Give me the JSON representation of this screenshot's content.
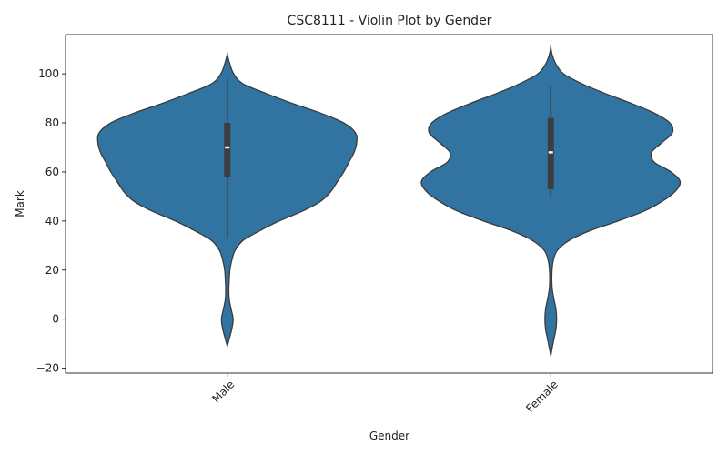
{
  "chart_data": {
    "type": "violin",
    "title": "CSC8111 - Violin Plot by Gender",
    "xlabel": "Gender",
    "ylabel": "Mark",
    "ylim": [
      -22,
      116
    ],
    "yticks": [
      -20,
      0,
      20,
      40,
      60,
      80,
      100
    ],
    "categories": [
      "Male",
      "Female"
    ],
    "x_tick_rotation": 45,
    "grid": false,
    "color": "#3274a1",
    "edge_color": "#3a3a3a",
    "box_color": "#3d3d3d",
    "median_color": "#ffffff",
    "violins": [
      {
        "category": "Male",
        "q1": 58,
        "median": 70,
        "q3": 80,
        "whisker_low": 33,
        "whisker_high": 98,
        "density": [
          [
            -11,
            0.0
          ],
          [
            -8,
            0.015
          ],
          [
            -4,
            0.035
          ],
          [
            0,
            0.045
          ],
          [
            4,
            0.03
          ],
          [
            8,
            0.015
          ],
          [
            12,
            0.012
          ],
          [
            16,
            0.015
          ],
          [
            20,
            0.02
          ],
          [
            24,
            0.035
          ],
          [
            28,
            0.06
          ],
          [
            32,
            0.12
          ],
          [
            36,
            0.25
          ],
          [
            40,
            0.4
          ],
          [
            44,
            0.58
          ],
          [
            48,
            0.72
          ],
          [
            52,
            0.8
          ],
          [
            56,
            0.85
          ],
          [
            60,
            0.9
          ],
          [
            64,
            0.94
          ],
          [
            68,
            0.98
          ],
          [
            72,
            1.0
          ],
          [
            76,
            0.99
          ],
          [
            80,
            0.9
          ],
          [
            84,
            0.72
          ],
          [
            88,
            0.5
          ],
          [
            92,
            0.3
          ],
          [
            96,
            0.12
          ],
          [
            100,
            0.05
          ],
          [
            104,
            0.02
          ],
          [
            108,
            0.0
          ]
        ]
      },
      {
        "category": "Female",
        "q1": 53,
        "median": 68,
        "q3": 82,
        "whisker_low": 50,
        "whisker_high": 95,
        "density": [
          [
            -15,
            0.0
          ],
          [
            -12,
            0.01
          ],
          [
            -8,
            0.025
          ],
          [
            -4,
            0.04
          ],
          [
            0,
            0.045
          ],
          [
            4,
            0.04
          ],
          [
            8,
            0.025
          ],
          [
            12,
            0.012
          ],
          [
            16,
            0.008
          ],
          [
            20,
            0.01
          ],
          [
            24,
            0.02
          ],
          [
            28,
            0.05
          ],
          [
            32,
            0.14
          ],
          [
            36,
            0.3
          ],
          [
            40,
            0.52
          ],
          [
            44,
            0.72
          ],
          [
            48,
            0.86
          ],
          [
            52,
            0.96
          ],
          [
            56,
            1.0
          ],
          [
            60,
            0.93
          ],
          [
            64,
            0.8
          ],
          [
            68,
            0.78
          ],
          [
            72,
            0.86
          ],
          [
            76,
            0.94
          ],
          [
            80,
            0.92
          ],
          [
            84,
            0.8
          ],
          [
            88,
            0.62
          ],
          [
            92,
            0.42
          ],
          [
            96,
            0.24
          ],
          [
            100,
            0.1
          ],
          [
            104,
            0.04
          ],
          [
            108,
            0.01
          ],
          [
            111,
            0.0
          ]
        ]
      }
    ]
  }
}
